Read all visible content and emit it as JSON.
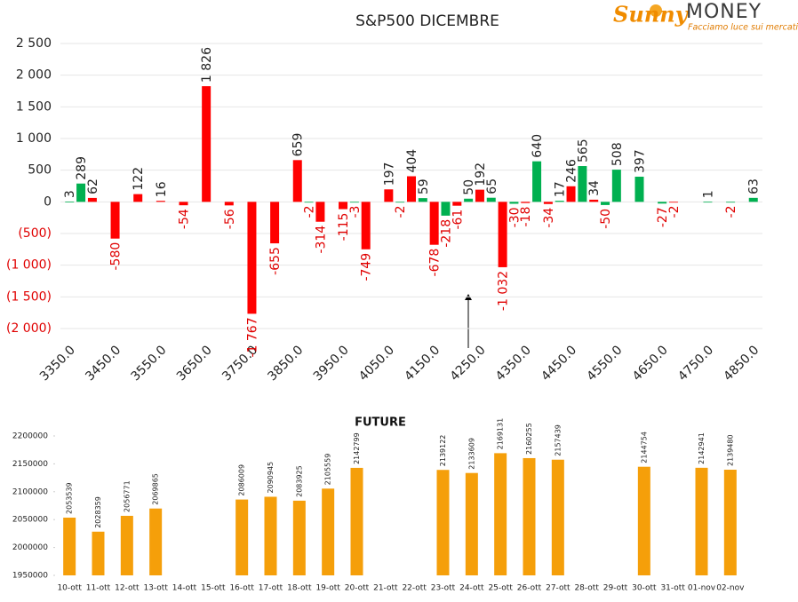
{
  "logo": {
    "brand_script": "Sunny",
    "brand": "MONEY",
    "tagline": "Facciamo luce sui mercati"
  },
  "chart_data": [
    {
      "type": "bar",
      "title": "S&P500 DICEMBRE",
      "x": [
        3350,
        3375,
        3400,
        3450,
        3500,
        3550,
        3600,
        3650,
        3700,
        3750,
        3800,
        3850,
        3875,
        3900,
        3950,
        3975,
        4000,
        4050,
        4075,
        4100,
        4125,
        4150,
        4175,
        4200,
        4225,
        4250,
        4275,
        4300,
        4325,
        4350,
        4375,
        4400,
        4425,
        4450,
        4475,
        4500,
        4525,
        4550,
        4600,
        4650,
        4675,
        4750,
        4800,
        4850
      ],
      "values": [
        3,
        289,
        62,
        -580,
        122,
        16,
        -54,
        1826,
        -56,
        -1767,
        -655,
        659,
        -2,
        -314,
        -115,
        -3,
        -749,
        197,
        -2,
        404,
        59,
        -678,
        -218,
        -61,
        50,
        192,
        65,
        -1032,
        -30,
        -18,
        640,
        -34,
        17,
        246,
        565,
        34,
        -50,
        508,
        397,
        -27,
        -2,
        1,
        -2,
        63
      ],
      "value_labels": [
        "3",
        "289",
        "62",
        "-580",
        "122",
        "16",
        "-54",
        "1 826",
        "-56",
        "-1 767",
        "-655",
        "659",
        "-2",
        "-314",
        "-115",
        "-3",
        "-749",
        "197",
        "-2",
        "404",
        "59",
        "-678",
        "-218",
        "-61",
        "50",
        "192",
        "65",
        "-1 032",
        "-30",
        "-18",
        "640",
        "-34",
        "17",
        "246",
        "565",
        "34",
        "-50",
        "508",
        "397",
        "-27",
        "-2",
        "1",
        "-2",
        "63"
      ],
      "colors": [
        "#00b050",
        "#00b050",
        "#ff0000",
        "#ff0000",
        "#ff0000",
        "#ff0000",
        "#ff0000",
        "#ff0000",
        "#ff0000",
        "#ff0000",
        "#ff0000",
        "#ff0000",
        "#00b050",
        "#ff0000",
        "#ff0000",
        "#00b050",
        "#ff0000",
        "#ff0000",
        "#00b050",
        "#ff0000",
        "#00b050",
        "#ff0000",
        "#00b050",
        "#ff0000",
        "#00b050",
        "#ff0000",
        "#00b050",
        "#ff0000",
        "#00b050",
        "#ff0000",
        "#00b050",
        "#ff0000",
        "#00b050",
        "#ff0000",
        "#00b050",
        "#ff0000",
        "#00b050",
        "#00b050",
        "#00b050",
        "#00b050",
        "#ff0000",
        "#00b050",
        "#00b050",
        "#00b050"
      ],
      "xlim": [
        3330,
        4870
      ],
      "xticks": [
        {
          "value": 3350,
          "label": "3350.0"
        },
        {
          "value": 3450,
          "label": "3450.0"
        },
        {
          "value": 3550,
          "label": "3550.0"
        },
        {
          "value": 3650,
          "label": "3650.0"
        },
        {
          "value": 3750,
          "label": "3750.0"
        },
        {
          "value": 3850,
          "label": "3850.0"
        },
        {
          "value": 3950,
          "label": "3950.0"
        },
        {
          "value": 4050,
          "label": "4050.0"
        },
        {
          "value": 4150,
          "label": "4150.0"
        },
        {
          "value": 4250,
          "label": "4250.0"
        },
        {
          "value": 4350,
          "label": "4350.0"
        },
        {
          "value": 4450,
          "label": "4450.0"
        },
        {
          "value": 4550,
          "label": "4550.0"
        },
        {
          "value": 4650,
          "label": "4650.0"
        },
        {
          "value": 4750,
          "label": "4750.0"
        },
        {
          "value": 4850,
          "label": "4850.0"
        }
      ],
      "ylim": [
        -2000,
        2500
      ],
      "yticks": [
        {
          "value": 2500,
          "label": "2 500"
        },
        {
          "value": 2000,
          "label": "2 000"
        },
        {
          "value": 1500,
          "label": "1 500"
        },
        {
          "value": 1000,
          "label": "1 000"
        },
        500,
        0,
        {
          "value": -500,
          "label": "(500)"
        },
        {
          "value": -1000,
          "label": "(1 000)"
        },
        {
          "value": -1500,
          "label": "(1 500)"
        },
        {
          "value": -2000,
          "label": "(2 000)"
        }
      ],
      "grid": true
    },
    {
      "type": "bar",
      "title": "FUTURE",
      "categories": [
        "10-ott",
        "11-ott",
        "12-ott",
        "13-ott",
        "14-ott",
        "15-ott",
        "16-ott",
        "17-ott",
        "18-ott",
        "19-ott",
        "20-ott",
        "21-ott",
        "22-ott",
        "23-ott",
        "24-ott",
        "25-ott",
        "26-ott",
        "27-ott",
        "28-ott",
        "29-ott",
        "30-ott",
        "31-ott",
        "01-nov",
        "02-nov"
      ],
      "values": [
        2053539,
        2028359,
        2056771,
        2069865,
        null,
        null,
        2086009,
        2090945,
        2083925,
        2105559,
        2142799,
        null,
        null,
        2139122,
        2133609,
        2169131,
        2160255,
        2157439,
        null,
        null,
        2144754,
        null,
        2142941,
        2139480
      ],
      "color": "#f59f0a",
      "ylim": [
        1950000,
        2200000
      ],
      "yticks": [
        1950000,
        2000000,
        2050000,
        2100000,
        2150000,
        2200000
      ],
      "grid": false
    }
  ]
}
